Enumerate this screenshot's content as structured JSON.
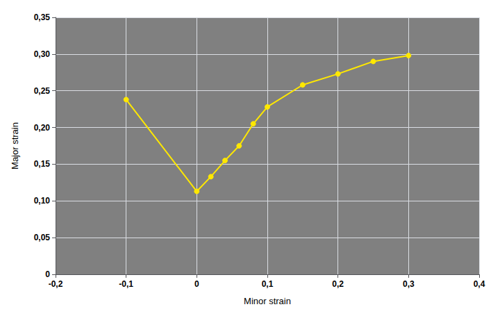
{
  "chart_data": {
    "type": "line",
    "xlabel": "Minor strain",
    "ylabel": "Major strain",
    "x": [
      -0.1,
      0.0,
      0.02,
      0.04,
      0.06,
      0.08,
      0.1,
      0.15,
      0.2,
      0.25,
      0.3
    ],
    "values": [
      0.238,
      0.113,
      0.133,
      0.155,
      0.175,
      0.205,
      0.228,
      0.258,
      0.273,
      0.29,
      0.298
    ],
    "color": "#FFE800",
    "marker": "circle",
    "xlim": [
      -0.2,
      0.4
    ],
    "ylim": [
      0,
      0.35
    ],
    "xticks": [
      {
        "value": -0.2,
        "label": "-0,2"
      },
      {
        "value": -0.1,
        "label": "-0,1"
      },
      0,
      {
        "value": 0.1,
        "label": "0,1"
      },
      {
        "value": 0.2,
        "label": "0,2"
      },
      {
        "value": 0.3,
        "label": "0,3"
      },
      {
        "value": 0.4,
        "label": "0,4"
      }
    ],
    "yticks": [
      0,
      {
        "value": 0.05,
        "label": "0,05"
      },
      {
        "value": 0.1,
        "label": "0,10"
      },
      {
        "value": 0.15,
        "label": "0,15"
      },
      {
        "value": 0.2,
        "label": "0,20"
      },
      {
        "value": 0.25,
        "label": "0,25"
      },
      {
        "value": 0.3,
        "label": "0,30"
      },
      {
        "value": 0.35,
        "label": "0,35"
      }
    ],
    "grid": true
  }
}
